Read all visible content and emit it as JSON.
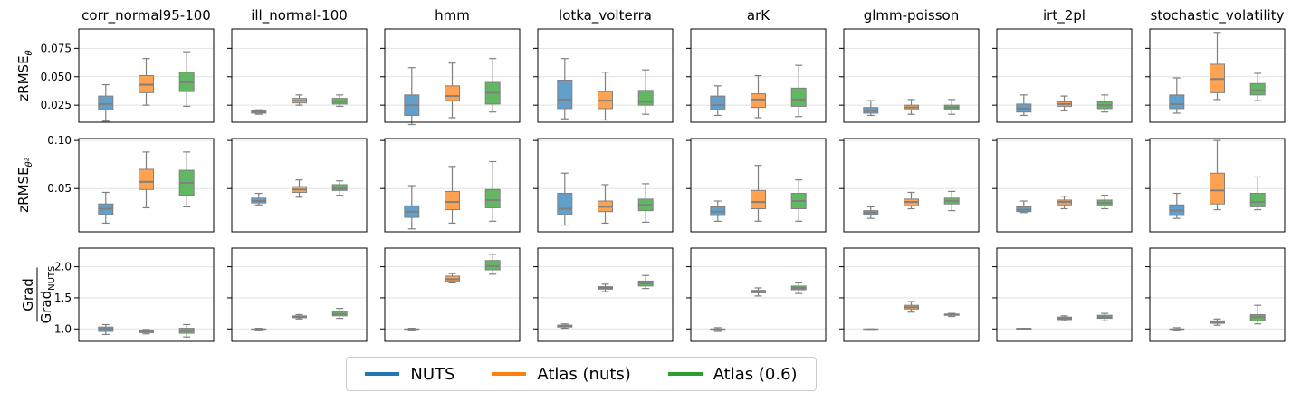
{
  "legend": [
    {
      "label": "NUTS",
      "color": "#1f77b4"
    },
    {
      "label": "Atlas (nuts)",
      "color": "#ff7f0e"
    },
    {
      "label": "Atlas (0.6)",
      "color": "#2ca02c"
    }
  ],
  "box_colors": [
    "#62a0cb",
    "#ffa352",
    "#62b862"
  ],
  "chart_data": {
    "type": "box",
    "columns": [
      "corr_normal95-100",
      "ill_normal-100",
      "hmm",
      "lotka_volterra",
      "arK",
      "glmm-poisson",
      "irt_2pl",
      "stochastic_volatility"
    ],
    "series_names": [
      "NUTS",
      "Atlas (nuts)",
      "Atlas (0.6)"
    ],
    "rows": [
      {
        "ylabel": "zRMSE",
        "ylabel_sub": "θ",
        "ylim": [
          0.01,
          0.092
        ],
        "yticks": [
          0.025,
          0.05,
          0.075
        ],
        "ytick_labels": [
          "0.025",
          "0.050",
          "0.075"
        ],
        "panels": [
          [
            [
              0.011,
              0.021,
              0.026,
              0.033,
              0.043
            ],
            [
              0.025,
              0.036,
              0.043,
              0.051,
              0.066
            ],
            [
              0.024,
              0.037,
              0.045,
              0.054,
              0.072
            ]
          ],
          [
            [
              0.017,
              0.018,
              0.019,
              0.02,
              0.021
            ],
            [
              0.025,
              0.027,
              0.029,
              0.031,
              0.034
            ],
            [
              0.024,
              0.026,
              0.028,
              0.031,
              0.034
            ]
          ],
          [
            [
              0.008,
              0.016,
              0.025,
              0.034,
              0.058
            ],
            [
              0.014,
              0.029,
              0.033,
              0.042,
              0.062
            ],
            [
              0.019,
              0.026,
              0.036,
              0.045,
              0.066
            ]
          ],
          [
            [
              0.013,
              0.022,
              0.03,
              0.047,
              0.066
            ],
            [
              0.012,
              0.022,
              0.029,
              0.037,
              0.054
            ],
            [
              0.017,
              0.025,
              0.028,
              0.038,
              0.056
            ]
          ],
          [
            [
              0.016,
              0.021,
              0.025,
              0.033,
              0.042
            ],
            [
              0.014,
              0.023,
              0.03,
              0.035,
              0.051
            ],
            [
              0.015,
              0.024,
              0.03,
              0.04,
              0.06
            ]
          ],
          [
            [
              0.016,
              0.018,
              0.02,
              0.023,
              0.029
            ],
            [
              0.017,
              0.021,
              0.023,
              0.025,
              0.03
            ],
            [
              0.017,
              0.021,
              0.023,
              0.025,
              0.03
            ]
          ],
          [
            [
              0.016,
              0.019,
              0.022,
              0.026,
              0.034
            ],
            [
              0.02,
              0.024,
              0.026,
              0.028,
              0.033
            ],
            [
              0.019,
              0.022,
              0.025,
              0.028,
              0.034
            ]
          ],
          [
            [
              0.018,
              0.022,
              0.026,
              0.034,
              0.049
            ],
            [
              0.03,
              0.036,
              0.048,
              0.061,
              0.089
            ],
            [
              0.029,
              0.034,
              0.038,
              0.044,
              0.053
            ]
          ]
        ]
      },
      {
        "ylabel": "zRMSE",
        "ylabel_sub": "θ²",
        "ylim": [
          0.005,
          0.102
        ],
        "yticks": [
          0.05,
          0.1
        ],
        "ytick_labels": [
          "0.05",
          "0.10"
        ],
        "panels": [
          [
            [
              0.014,
              0.023,
              0.029,
              0.034,
              0.046
            ],
            [
              0.03,
              0.049,
              0.057,
              0.07,
              0.088
            ],
            [
              0.031,
              0.043,
              0.056,
              0.069,
              0.088
            ]
          ],
          [
            [
              0.033,
              0.035,
              0.037,
              0.04,
              0.045
            ],
            [
              0.041,
              0.046,
              0.049,
              0.052,
              0.059
            ],
            [
              0.043,
              0.048,
              0.05,
              0.054,
              0.058
            ]
          ],
          [
            [
              0.008,
              0.02,
              0.026,
              0.032,
              0.053
            ],
            [
              0.014,
              0.028,
              0.036,
              0.047,
              0.073
            ],
            [
              0.016,
              0.03,
              0.038,
              0.049,
              0.078
            ]
          ],
          [
            [
              0.012,
              0.023,
              0.029,
              0.045,
              0.066
            ],
            [
              0.014,
              0.026,
              0.031,
              0.037,
              0.054
            ],
            [
              0.015,
              0.027,
              0.033,
              0.039,
              0.055
            ]
          ],
          [
            [
              0.016,
              0.022,
              0.026,
              0.031,
              0.037
            ],
            [
              0.016,
              0.029,
              0.036,
              0.048,
              0.074
            ],
            [
              0.016,
              0.029,
              0.037,
              0.045,
              0.059
            ]
          ],
          [
            [
              0.019,
              0.023,
              0.025,
              0.027,
              0.031
            ],
            [
              0.029,
              0.032,
              0.036,
              0.039,
              0.046
            ],
            [
              0.027,
              0.034,
              0.037,
              0.04,
              0.047
            ]
          ],
          [
            [
              0.025,
              0.026,
              0.028,
              0.031,
              0.037
            ],
            [
              0.029,
              0.033,
              0.036,
              0.038,
              0.042
            ],
            [
              0.029,
              0.032,
              0.035,
              0.038,
              0.043
            ]
          ],
          [
            [
              0.019,
              0.022,
              0.027,
              0.033,
              0.045
            ],
            [
              0.028,
              0.034,
              0.048,
              0.066,
              0.1
            ],
            [
              0.028,
              0.031,
              0.036,
              0.045,
              0.062
            ]
          ]
        ]
      },
      {
        "ylabel": "Grad",
        "ylabel_den": "Grad",
        "ylabel_den_sub": "NUTS",
        "ylim": [
          0.8,
          2.3
        ],
        "yticks": [
          1.0,
          1.5,
          2.0
        ],
        "ytick_labels": [
          "1.0",
          "1.5",
          "2.0"
        ],
        "panels": [
          [
            [
              0.91,
              0.96,
              1.0,
              1.03,
              1.07
            ],
            [
              0.92,
              0.94,
              0.96,
              0.97,
              0.99
            ],
            [
              0.87,
              0.93,
              0.97,
              1.01,
              1.07
            ]
          ],
          [
            [
              0.97,
              0.98,
              0.99,
              1.0,
              1.01
            ],
            [
              1.16,
              1.18,
              1.2,
              1.21,
              1.23
            ],
            [
              1.17,
              1.21,
              1.24,
              1.28,
              1.33
            ]
          ],
          [
            [
              0.97,
              0.98,
              0.99,
              1.0,
              1.01
            ],
            [
              1.74,
              1.77,
              1.8,
              1.85,
              1.89
            ],
            [
              1.88,
              1.95,
              2.01,
              2.1,
              2.2
            ]
          ],
          [
            [
              1.01,
              1.03,
              1.05,
              1.06,
              1.08
            ],
            [
              1.6,
              1.64,
              1.66,
              1.68,
              1.72
            ],
            [
              1.65,
              1.69,
              1.73,
              1.77,
              1.86
            ]
          ],
          [
            [
              0.96,
              0.98,
              0.99,
              1.0,
              1.02
            ],
            [
              1.53,
              1.58,
              1.6,
              1.62,
              1.66
            ],
            [
              1.57,
              1.63,
              1.66,
              1.69,
              1.74
            ]
          ],
          [
            [
              0.98,
              0.99,
              0.99,
              1.0,
              1.0
            ],
            [
              1.27,
              1.32,
              1.35,
              1.38,
              1.44
            ],
            [
              1.2,
              1.22,
              1.23,
              1.24,
              1.25
            ]
          ],
          [
            [
              0.99,
              1.0,
              1.0,
              1.01,
              1.01
            ],
            [
              1.13,
              1.15,
              1.17,
              1.19,
              1.21
            ],
            [
              1.13,
              1.17,
              1.19,
              1.22,
              1.25
            ]
          ],
          [
            [
              0.97,
              0.98,
              0.99,
              1.0,
              1.02
            ],
            [
              1.06,
              1.09,
              1.11,
              1.13,
              1.16
            ],
            [
              1.08,
              1.13,
              1.19,
              1.23,
              1.38
            ]
          ]
        ]
      }
    ]
  }
}
